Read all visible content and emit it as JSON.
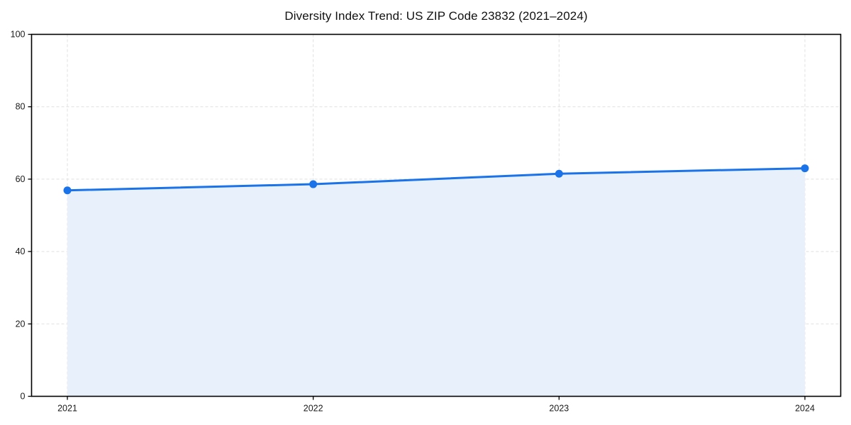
{
  "chart_data": {
    "type": "line",
    "title": "Diversity Index Trend: US ZIP Code 23832 (2021–2024)",
    "categories": [
      "2021",
      "2022",
      "2023",
      "2024"
    ],
    "series": [
      {
        "name": "Diversity Index",
        "values": [
          56.9,
          58.6,
          61.5,
          63.0
        ]
      }
    ],
    "xlabel": "",
    "ylabel": "",
    "ylim": [
      0,
      100
    ],
    "yticks": [
      0,
      20,
      40,
      60,
      80,
      100
    ],
    "grid": true,
    "grid_style": "dashed",
    "legend_position": "none",
    "colors": {
      "line": "#1a73e8",
      "marker": "#1a73e8",
      "area_fill": "#e8f0fc",
      "gridline": "#e0e0e0",
      "spine": "#000000",
      "tick_text": "#1a1a1a",
      "background": "#ffffff"
    }
  }
}
